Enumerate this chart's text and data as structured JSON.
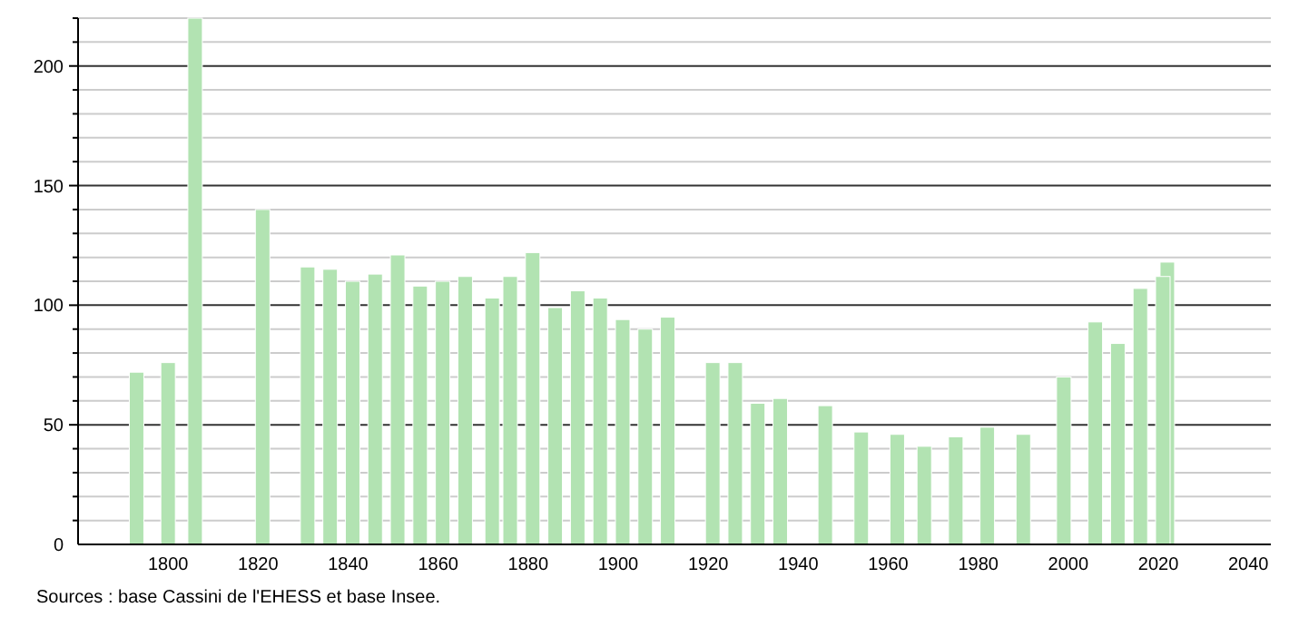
{
  "chart_data": {
    "type": "bar",
    "x": [
      1793,
      1800,
      1806,
      1821,
      1831,
      1836,
      1841,
      1846,
      1851,
      1856,
      1861,
      1866,
      1872,
      1876,
      1881,
      1886,
      1891,
      1896,
      1901,
      1906,
      1911,
      1921,
      1926,
      1931,
      1936,
      1946,
      1954,
      1962,
      1968,
      1975,
      1982,
      1990,
      1999,
      2006,
      2011,
      2016,
      2021,
      2022
    ],
    "values": [
      72,
      76,
      220,
      140,
      116,
      115,
      110,
      113,
      121,
      108,
      110,
      112,
      103,
      112,
      122,
      99,
      106,
      103,
      94,
      90,
      95,
      76,
      76,
      59,
      61,
      58,
      47,
      46,
      41,
      45,
      49,
      46,
      70,
      93,
      84,
      107,
      112,
      118
    ],
    "color": "#b2e3b2",
    "xlim": [
      1780,
      2045
    ],
    "xticks": [
      1800,
      1820,
      1840,
      1860,
      1880,
      1900,
      1920,
      1940,
      1960,
      1980,
      2000,
      2020,
      2040
    ],
    "ylim": [
      0,
      220
    ],
    "yticks": [
      0,
      {
        "value": 10,
        "label": null
      },
      {
        "value": 20,
        "label": null
      },
      {
        "value": 30,
        "label": null
      },
      {
        "value": 40,
        "label": null
      },
      50,
      {
        "value": 60,
        "label": null
      },
      {
        "value": 70,
        "label": null
      },
      {
        "value": 80,
        "label": null
      },
      {
        "value": 90,
        "label": null
      },
      100,
      {
        "value": 110,
        "label": null
      },
      {
        "value": 120,
        "label": null
      },
      {
        "value": 130,
        "label": null
      },
      {
        "value": 140,
        "label": null
      },
      150,
      {
        "value": 160,
        "label": null
      },
      {
        "value": 170,
        "label": null
      },
      {
        "value": 180,
        "label": null
      },
      {
        "value": 190,
        "label": null
      },
      200,
      {
        "value": 210,
        "label": null
      },
      {
        "value": 220,
        "label": null
      }
    ],
    "grid": true,
    "annotations": [
      "Sources : base Cassini de l'EHESS et base Insee."
    ]
  }
}
